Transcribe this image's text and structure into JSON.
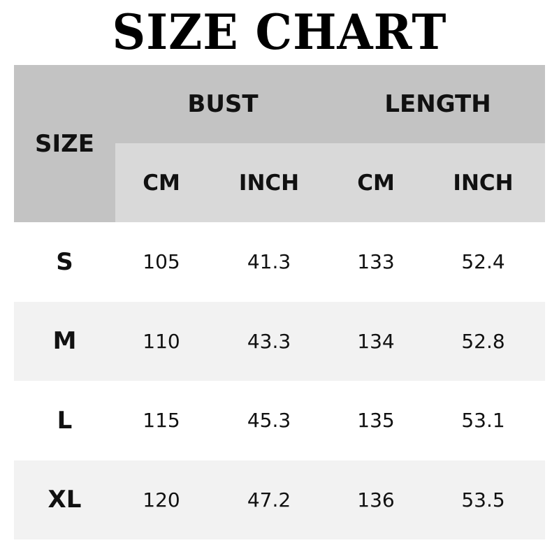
{
  "title": "SIZE CHART",
  "table": {
    "size_header": "SIZE",
    "groups": [
      "BUST",
      "LENGTH"
    ],
    "units": [
      "CM",
      "INCH",
      "CM",
      "INCH"
    ],
    "rows": [
      {
        "size": "S",
        "values": [
          "105",
          "41.3",
          "133",
          "52.4"
        ]
      },
      {
        "size": "M",
        "values": [
          "110",
          "43.3",
          "134",
          "52.8"
        ]
      },
      {
        "size": "L",
        "values": [
          "115",
          "45.3",
          "135",
          "53.1"
        ]
      },
      {
        "size": "XL",
        "values": [
          "120",
          "47.2",
          "136",
          "53.5"
        ]
      }
    ]
  },
  "colors": {
    "header": "#c3c3c3",
    "subheader": "#d9d9d9",
    "alt_row": "#f2f2f2"
  }
}
